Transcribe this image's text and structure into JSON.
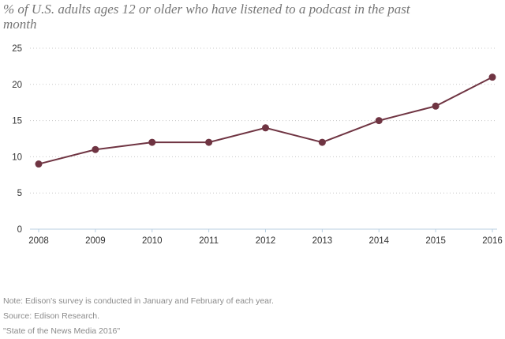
{
  "chart_data": {
    "type": "line",
    "title": "% of U.S. adults ages 12 or older who have listened to a podcast in the past month",
    "x": [
      "2008",
      "2009",
      "2010",
      "2011",
      "2012",
      "2013",
      "2014",
      "2015",
      "2016"
    ],
    "series": [
      {
        "values": [
          9,
          11,
          12,
          12,
          14,
          12,
          15,
          17,
          21
        ],
        "color": "#6f3442"
      }
    ],
    "ylim": [
      0,
      25
    ],
    "yticks": [
      0,
      5,
      10,
      15,
      20,
      25
    ],
    "grid": "horizontal-dotted",
    "xlabel": "",
    "ylabel": ""
  },
  "notes": {
    "note": "Note: Edison's survey is conducted in January and February of each year.",
    "source": "Source: Edison Research.",
    "report": "\"State of the News Media 2016\""
  }
}
